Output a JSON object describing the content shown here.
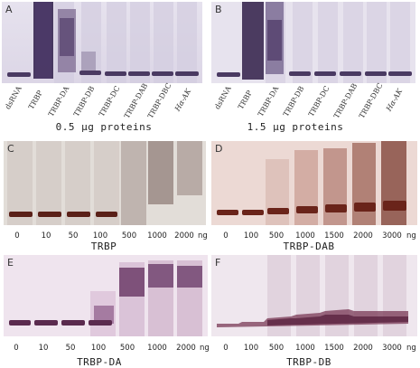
{
  "panels": {
    "A": {
      "letter": "A",
      "lanes": [
        "dsRNA",
        "TRBP",
        "TRBP-DA",
        "TRBP-DB",
        "TRBP-DC",
        "TRBP-DAB",
        "TRBP-DBC",
        "Hα-AK"
      ],
      "caption": "0.5 μg proteins"
    },
    "B": {
      "letter": "B",
      "lanes": [
        "dsRNA",
        "TRBP",
        "TRBP-DA",
        "TRBP-DB",
        "TRBP-DC",
        "TRBP-DAB",
        "TRBP-DBC",
        "Hα-AK"
      ],
      "caption": "1.5 μg proteins"
    },
    "C": {
      "letter": "C",
      "amounts": [
        "0",
        "10",
        "50",
        "100",
        "500",
        "1000",
        "2000"
      ],
      "unit": "ng",
      "caption": "TRBP"
    },
    "D": {
      "letter": "D",
      "amounts": [
        "0",
        "100",
        "500",
        "1000",
        "1500",
        "2000",
        "3000"
      ],
      "unit": "ng",
      "caption": "TRBP-DAB"
    },
    "E": {
      "letter": "E",
      "amounts": [
        "0",
        "10",
        "50",
        "100",
        "500",
        "1000",
        "2000"
      ],
      "unit": "ng",
      "caption": "TRBP-DA"
    },
    "F": {
      "letter": "F",
      "amounts": [
        "0",
        "100",
        "500",
        "1000",
        "1500",
        "2000",
        "3000"
      ],
      "unit": "ng",
      "caption": "TRBP-DB"
    }
  }
}
